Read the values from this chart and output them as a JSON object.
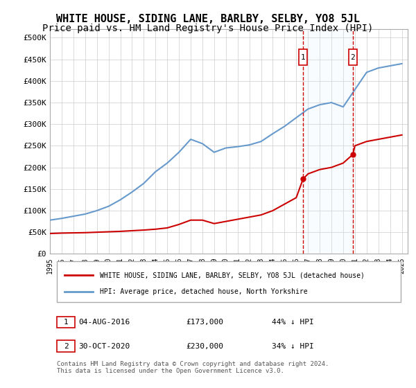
{
  "title": "WHITE HOUSE, SIDING LANE, BARLBY, SELBY, YO8 5JL",
  "subtitle": "Price paid vs. HM Land Registry's House Price Index (HPI)",
  "title_fontsize": 11,
  "subtitle_fontsize": 10,
  "bg_color": "#ffffff",
  "grid_color": "#cccccc",
  "hpi_color": "#6699cc",
  "price_color": "#cc0000",
  "marker_color": "#cc0000",
  "vline_color": "#cc0000",
  "shade_color": "#ddeeff",
  "ylim": [
    0,
    520000
  ],
  "yticks": [
    0,
    50000,
    100000,
    150000,
    200000,
    250000,
    300000,
    350000,
    400000,
    450000,
    500000
  ],
  "ytick_labels": [
    "£0",
    "£50K",
    "£100K",
    "£150K",
    "£200K",
    "£250K",
    "£300K",
    "£350K",
    "£400K",
    "£450K",
    "£500K"
  ],
  "xlabel_years": [
    "1995",
    "1996",
    "1997",
    "1998",
    "1999",
    "2000",
    "2001",
    "2002",
    "2003",
    "2004",
    "2005",
    "2006",
    "2007",
    "2008",
    "2009",
    "2010",
    "2011",
    "2012",
    "2013",
    "2014",
    "2015",
    "2016",
    "2017",
    "2018",
    "2019",
    "2020",
    "2021",
    "2022",
    "2023",
    "2024",
    "2025"
  ],
  "sale1_year": 2016.58,
  "sale1_price": 173000,
  "sale1_label": "1",
  "sale2_year": 2020.83,
  "sale2_price": 230000,
  "sale2_label": "2",
  "legend_line1": "WHITE HOUSE, SIDING LANE, BARLBY, SELBY, YO8 5JL (detached house)",
  "legend_line2": "HPI: Average price, detached house, North Yorkshire",
  "table_row1": [
    "1",
    "04-AUG-2016",
    "£173,000",
    "44% ↓ HPI"
  ],
  "table_row2": [
    "2",
    "30-OCT-2020",
    "£230,000",
    "34% ↓ HPI"
  ],
  "footnote": "Contains HM Land Registry data © Crown copyright and database right 2024.\nThis data is licensed under the Open Government Licence v3.0.",
  "hpi_years": [
    1995,
    1996,
    1997,
    1998,
    1999,
    2000,
    2001,
    2002,
    2003,
    2004,
    2005,
    2006,
    2007,
    2008,
    2009,
    2010,
    2011,
    2012,
    2013,
    2014,
    2015,
    2016,
    2017,
    2018,
    2019,
    2020,
    2021,
    2022,
    2023,
    2024,
    2025
  ],
  "hpi_values": [
    78000,
    82000,
    87000,
    92000,
    100000,
    110000,
    125000,
    143000,
    163000,
    190000,
    210000,
    235000,
    265000,
    255000,
    235000,
    245000,
    248000,
    252000,
    260000,
    278000,
    295000,
    315000,
    335000,
    345000,
    350000,
    340000,
    380000,
    420000,
    430000,
    435000,
    440000
  ],
  "price_years": [
    1995,
    1996,
    1997,
    1998,
    1999,
    2000,
    2001,
    2002,
    2003,
    2004,
    2005,
    2006,
    2007,
    2008,
    2009,
    2010,
    2011,
    2012,
    2013,
    2014,
    2015,
    2016,
    2016.58,
    2017,
    2018,
    2019,
    2020,
    2020.83,
    2021,
    2022,
    2023,
    2024,
    2025
  ],
  "price_values": [
    47000,
    48000,
    48500,
    49000,
    50000,
    51000,
    52000,
    53500,
    55000,
    57000,
    60000,
    68000,
    78000,
    78000,
    70000,
    75000,
    80000,
    85000,
    90000,
    100000,
    115000,
    130000,
    173000,
    185000,
    195000,
    200000,
    210000,
    230000,
    250000,
    260000,
    265000,
    270000,
    275000
  ]
}
